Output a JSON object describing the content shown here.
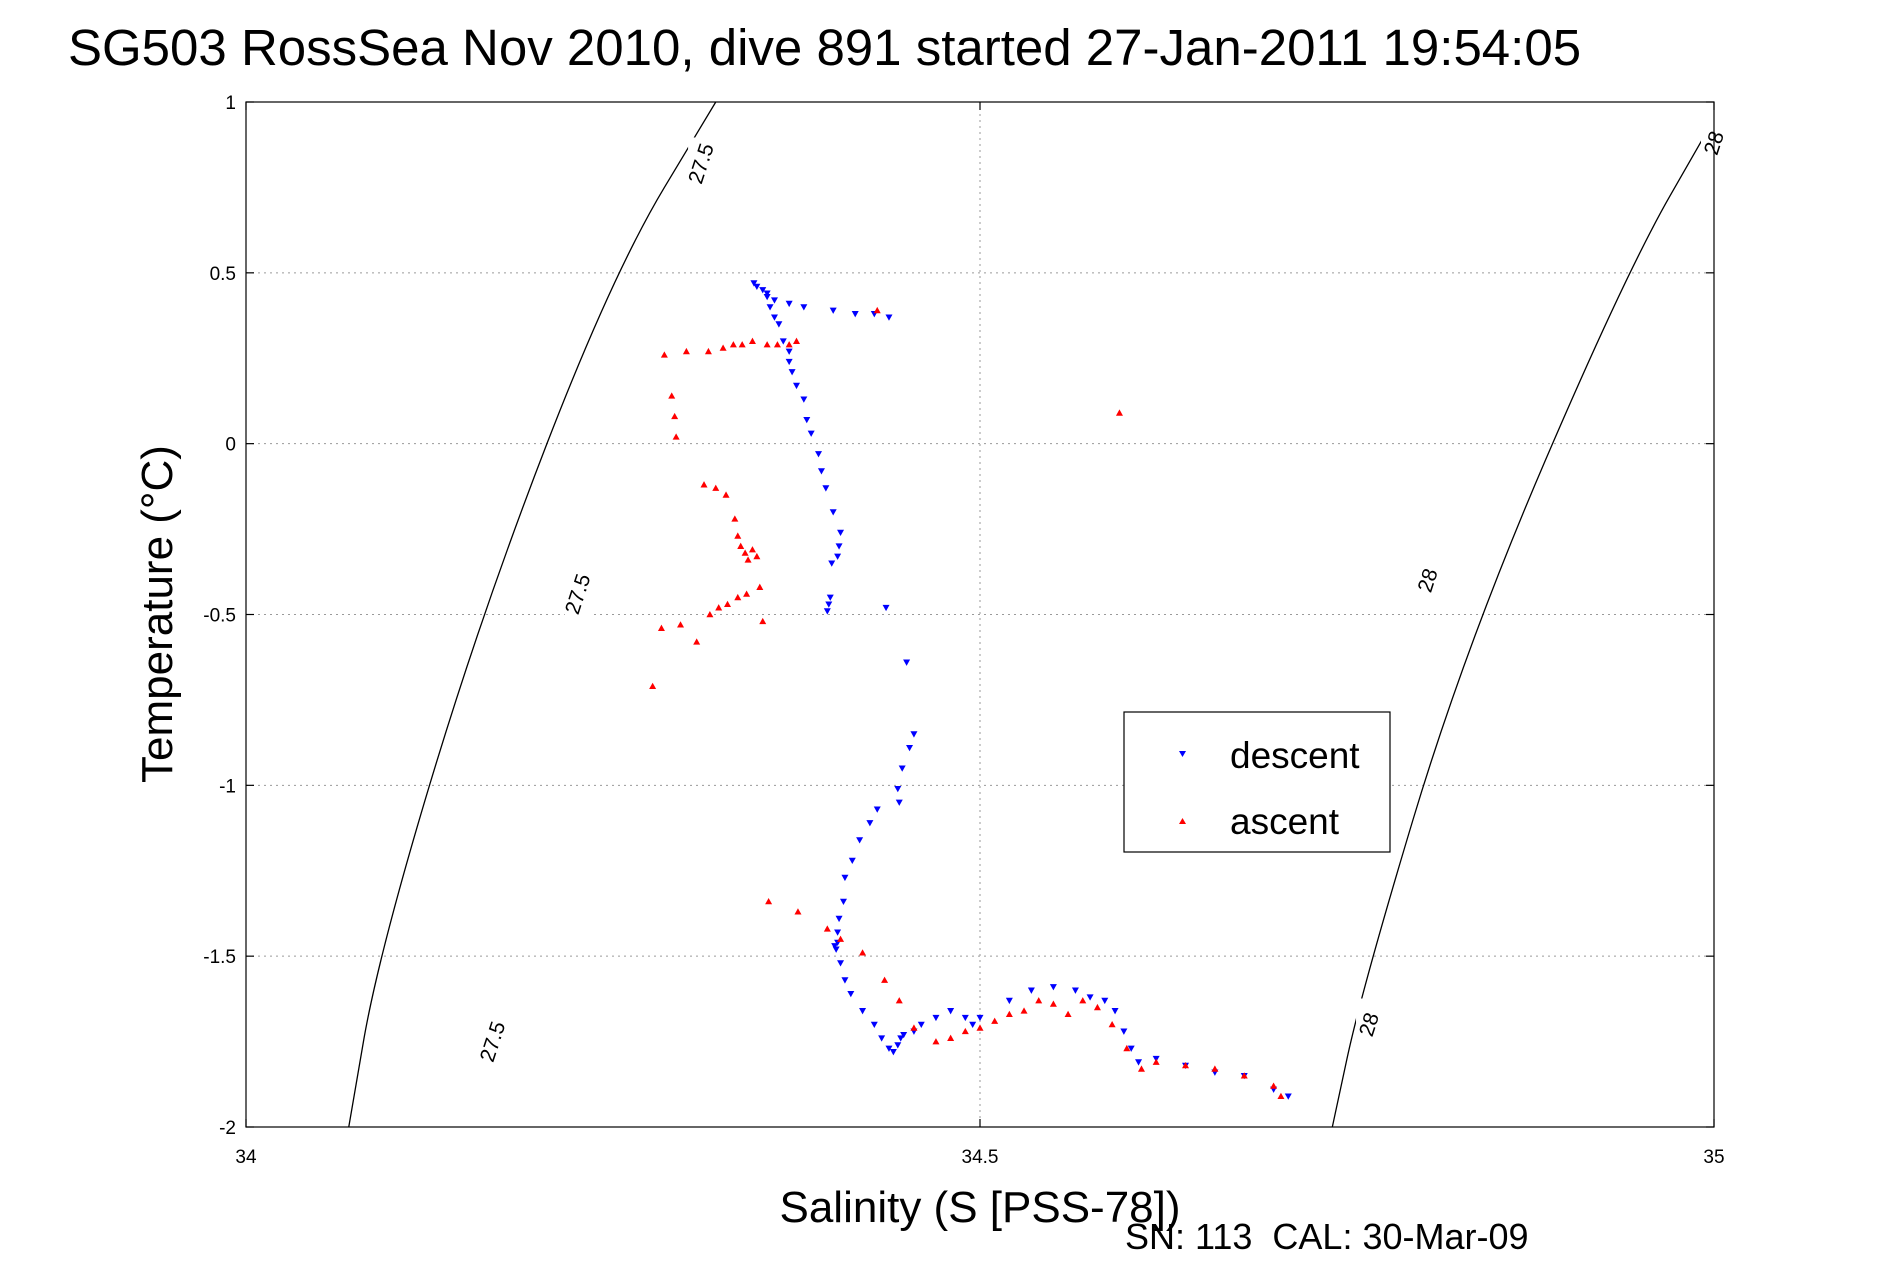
{
  "chart_data": {
    "type": "scatter",
    "title": "SG503 RossSea Nov 2010, dive 891 started 27-Jan-2011 19:54:05",
    "xlabel": "Salinity (S [PSS-78])",
    "ylabel": "Temperature (°C)",
    "footer": "SN: 113  CAL: 30-Mar-09",
    "xlim": [
      34,
      35
    ],
    "ylim": [
      -2,
      1
    ],
    "x_ticks": [
      34,
      34.5,
      35
    ],
    "x_tick_labels": [
      "34",
      "34.5",
      "35"
    ],
    "y_ticks": [
      1,
      0.5,
      0,
      -0.5,
      -1,
      -1.5,
      -2
    ],
    "y_tick_labels": [
      "1",
      "0.5",
      "0",
      "-0.5",
      "-1",
      "-1.5",
      "-2"
    ],
    "grid": true,
    "legend_position": "center-right",
    "density_contours": [
      {
        "label": "27.5",
        "points": [
          [
            34.32,
            1.0
          ],
          [
            34.25,
            0.5
          ],
          [
            34.16,
            -0.5
          ],
          [
            34.09,
            -1.5
          ],
          [
            34.07,
            -2.0
          ]
        ],
        "label_positions": [
          [
            34.31,
            0.82
          ],
          [
            34.226,
            -0.44
          ],
          [
            34.168,
            -1.75
          ]
        ]
      },
      {
        "label": "28",
        "points": [
          [
            35.0,
            0.95
          ],
          [
            34.94,
            0.5
          ],
          [
            34.83,
            -0.6
          ],
          [
            34.76,
            -1.6
          ],
          [
            34.74,
            -2.0
          ]
        ],
        "label_positions": [
          [
            35.0,
            0.88
          ],
          [
            34.805,
            -0.4
          ],
          [
            34.765,
            -1.7
          ]
        ]
      }
    ],
    "series": [
      {
        "name": "descent",
        "color": "#0000ff",
        "marker": "triangle-down",
        "x": [
          34.346,
          34.348,
          34.352,
          34.355,
          34.36,
          34.37,
          34.38,
          34.4,
          34.415,
          34.428,
          34.438,
          34.355,
          34.357,
          34.36,
          34.363,
          34.366,
          34.37,
          34.37,
          34.372,
          34.375,
          34.38,
          34.382,
          34.385,
          34.39,
          34.392,
          34.395,
          34.4,
          34.405,
          34.404,
          34.403,
          34.399,
          34.398,
          34.397,
          34.396,
          34.436,
          34.45,
          34.455,
          34.447,
          34.444,
          34.452,
          34.445,
          34.43,
          34.425,
          34.418,
          34.413,
          34.408,
          34.407,
          34.404,
          34.403,
          34.403,
          34.401,
          34.402,
          34.405,
          34.408,
          34.412,
          34.42,
          34.428,
          34.433,
          34.438,
          34.441,
          34.444,
          34.446,
          34.448,
          34.455,
          34.46,
          34.47,
          34.48,
          34.49,
          34.495,
          34.5,
          34.52,
          34.535,
          34.55,
          34.565,
          34.575,
          34.585,
          34.592,
          34.598,
          34.603,
          34.608,
          34.62,
          34.64,
          34.66,
          34.68,
          34.7,
          34.71
        ],
        "y": [
          0.47,
          0.46,
          0.45,
          0.44,
          0.42,
          0.41,
          0.4,
          0.39,
          0.38,
          0.38,
          0.37,
          0.43,
          0.4,
          0.37,
          0.35,
          0.3,
          0.27,
          0.24,
          0.21,
          0.17,
          0.13,
          0.07,
          0.03,
          -0.03,
          -0.08,
          -0.13,
          -0.2,
          -0.26,
          -0.3,
          -0.33,
          -0.35,
          -0.45,
          -0.47,
          -0.49,
          -0.48,
          -0.64,
          -0.85,
          -0.95,
          -1.01,
          -0.89,
          -1.05,
          -1.07,
          -1.11,
          -1.16,
          -1.22,
          -1.27,
          -1.34,
          -1.39,
          -1.43,
          -1.46,
          -1.47,
          -1.48,
          -1.52,
          -1.57,
          -1.61,
          -1.66,
          -1.7,
          -1.74,
          -1.77,
          -1.78,
          -1.76,
          -1.74,
          -1.73,
          -1.72,
          -1.7,
          -1.68,
          -1.66,
          -1.68,
          -1.7,
          -1.68,
          -1.63,
          -1.6,
          -1.59,
          -1.6,
          -1.62,
          -1.63,
          -1.66,
          -1.72,
          -1.77,
          -1.81,
          -1.8,
          -1.82,
          -1.84,
          -1.85,
          -1.89,
          -1.91
        ]
      },
      {
        "name": "ascent",
        "color": "#ff0000",
        "marker": "triangle-up",
        "x": [
          34.43,
          34.595,
          34.375,
          34.37,
          34.362,
          34.355,
          34.345,
          34.338,
          34.332,
          34.325,
          34.315,
          34.3,
          34.285,
          34.29,
          34.292,
          34.293,
          34.312,
          34.32,
          34.327,
          34.333,
          34.335,
          34.337,
          34.34,
          34.342,
          34.345,
          34.348,
          34.35,
          34.341,
          34.335,
          34.328,
          34.322,
          34.316,
          34.352,
          34.296,
          34.283,
          34.277,
          34.307,
          34.356,
          34.376,
          34.396,
          34.405,
          34.42,
          34.435,
          34.445,
          34.455,
          34.47,
          34.48,
          34.49,
          34.5,
          34.51,
          34.52,
          34.53,
          34.54,
          34.55,
          34.56,
          34.57,
          34.58,
          34.59,
          34.6,
          34.61,
          34.62,
          34.64,
          34.66,
          34.68,
          34.7,
          34.705
        ],
        "y": [
          0.39,
          0.09,
          0.3,
          0.29,
          0.29,
          0.29,
          0.3,
          0.29,
          0.29,
          0.28,
          0.27,
          0.27,
          0.26,
          0.14,
          0.08,
          0.02,
          -0.12,
          -0.13,
          -0.15,
          -0.22,
          -0.27,
          -0.3,
          -0.32,
          -0.34,
          -0.31,
          -0.33,
          -0.42,
          -0.44,
          -0.45,
          -0.47,
          -0.48,
          -0.5,
          -0.52,
          -0.53,
          -0.54,
          -0.71,
          -0.58,
          -1.34,
          -1.37,
          -1.42,
          -1.45,
          -1.49,
          -1.57,
          -1.63,
          -1.71,
          -1.75,
          -1.74,
          -1.72,
          -1.71,
          -1.69,
          -1.67,
          -1.66,
          -1.63,
          -1.64,
          -1.67,
          -1.63,
          -1.65,
          -1.7,
          -1.77,
          -1.83,
          -1.81,
          -1.82,
          -1.83,
          -1.85,
          -1.88,
          -1.91
        ],
        "y_note": ""
      }
    ]
  }
}
